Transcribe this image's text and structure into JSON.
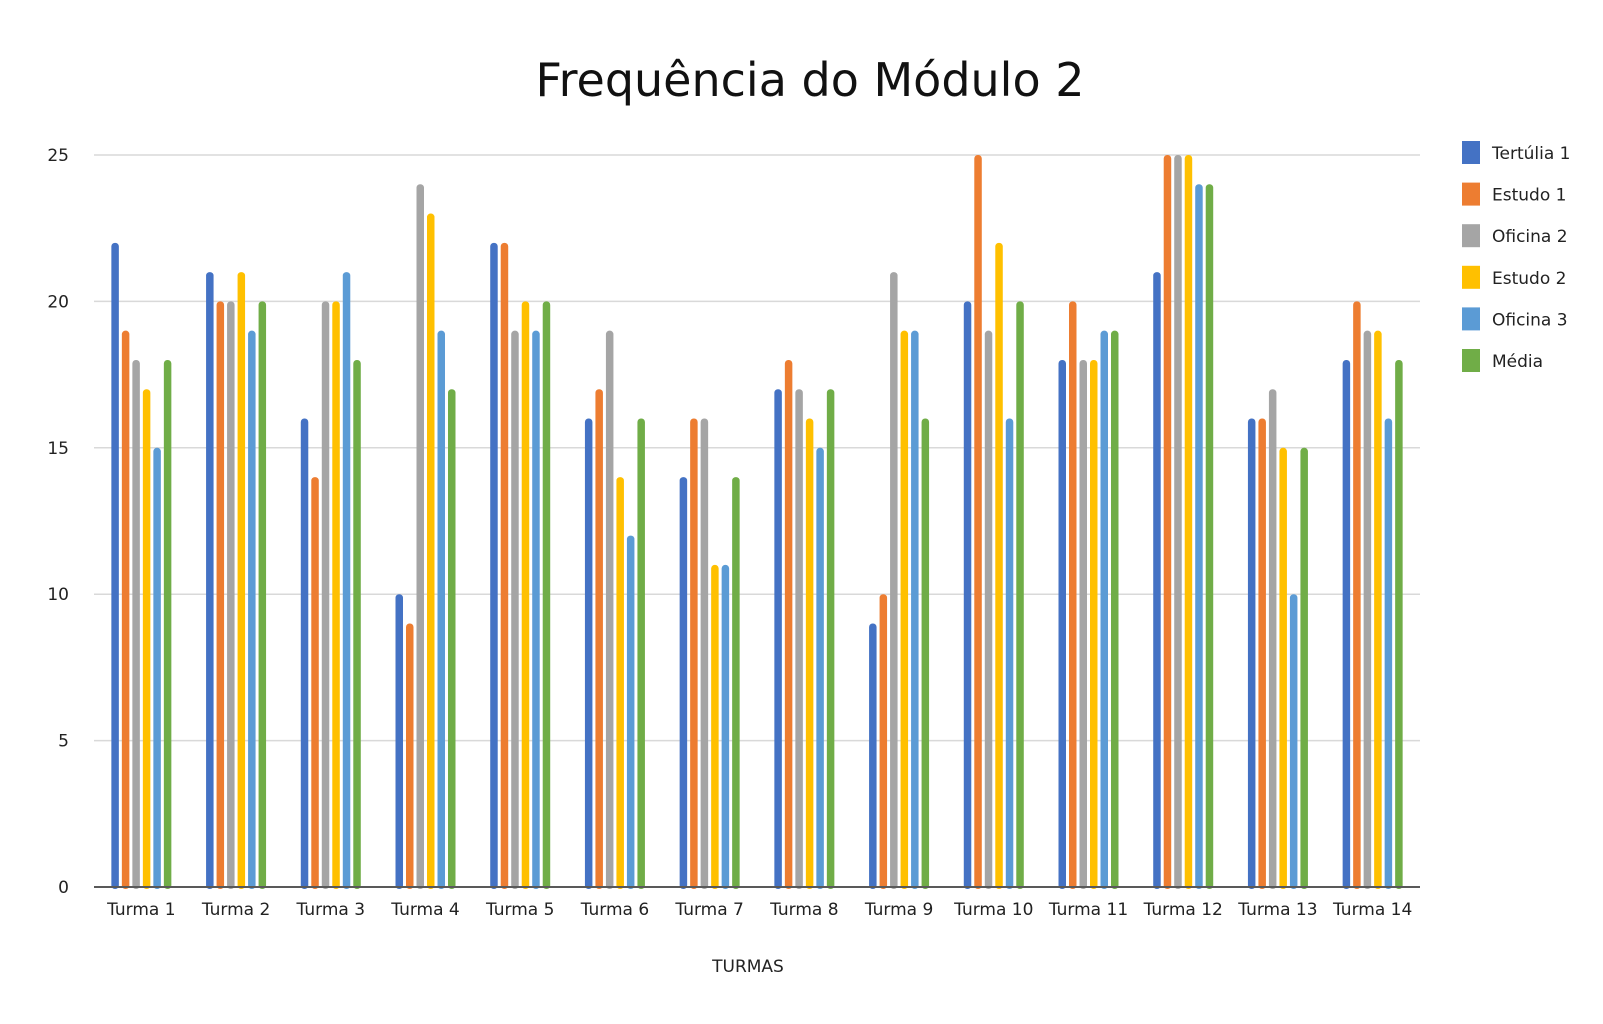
{
  "chart_data": {
    "type": "bar",
    "title": "Frequência do Módulo 2",
    "xlabel": "TURMAS",
    "ylabel": "",
    "ylim": [
      0,
      25
    ],
    "yticks": [
      0,
      5,
      10,
      15,
      20,
      25
    ],
    "grid": true,
    "legend_position": "right",
    "categories": [
      "Turma 1",
      "Turma 2",
      "Turma 3",
      "Turma 4",
      "Turma 5",
      "Turma 6",
      "Turma 7",
      "Turma 8",
      "Turma 9",
      "Turma 10",
      "Turma 11",
      "Turma 12",
      "Turma 13",
      "Turma 14"
    ],
    "series": [
      {
        "name": "Tertúlia 1",
        "color": "#4472C4",
        "values": [
          22,
          21,
          16,
          10,
          22,
          16,
          14,
          17,
          9,
          20,
          18,
          21,
          16,
          18
        ]
      },
      {
        "name": "Estudo 1",
        "color": "#ED7D31",
        "values": [
          19,
          20,
          14,
          9,
          22,
          17,
          16,
          18,
          10,
          25,
          20,
          25,
          16,
          20
        ]
      },
      {
        "name": "Oficina 2",
        "color": "#A5A5A5",
        "values": [
          18,
          20,
          20,
          24,
          19,
          19,
          16,
          17,
          21,
          19,
          18,
          25,
          17,
          19
        ]
      },
      {
        "name": "Estudo 2",
        "color": "#FFC000",
        "values": [
          17,
          21,
          20,
          23,
          20,
          14,
          11,
          16,
          19,
          22,
          18,
          25,
          15,
          19
        ]
      },
      {
        "name": "Oficina 3",
        "color": "#5B9BD5",
        "values": [
          15,
          19,
          21,
          19,
          19,
          12,
          11,
          15,
          19,
          16,
          19,
          24,
          10,
          16
        ]
      },
      {
        "name": "Média",
        "color": "#70AD47",
        "values": [
          18,
          20,
          18,
          17,
          20,
          16,
          14,
          17,
          16,
          20,
          19,
          24,
          15,
          18
        ]
      }
    ]
  },
  "colors": {
    "grid": "#d9d9d9",
    "axis": "#595959"
  }
}
